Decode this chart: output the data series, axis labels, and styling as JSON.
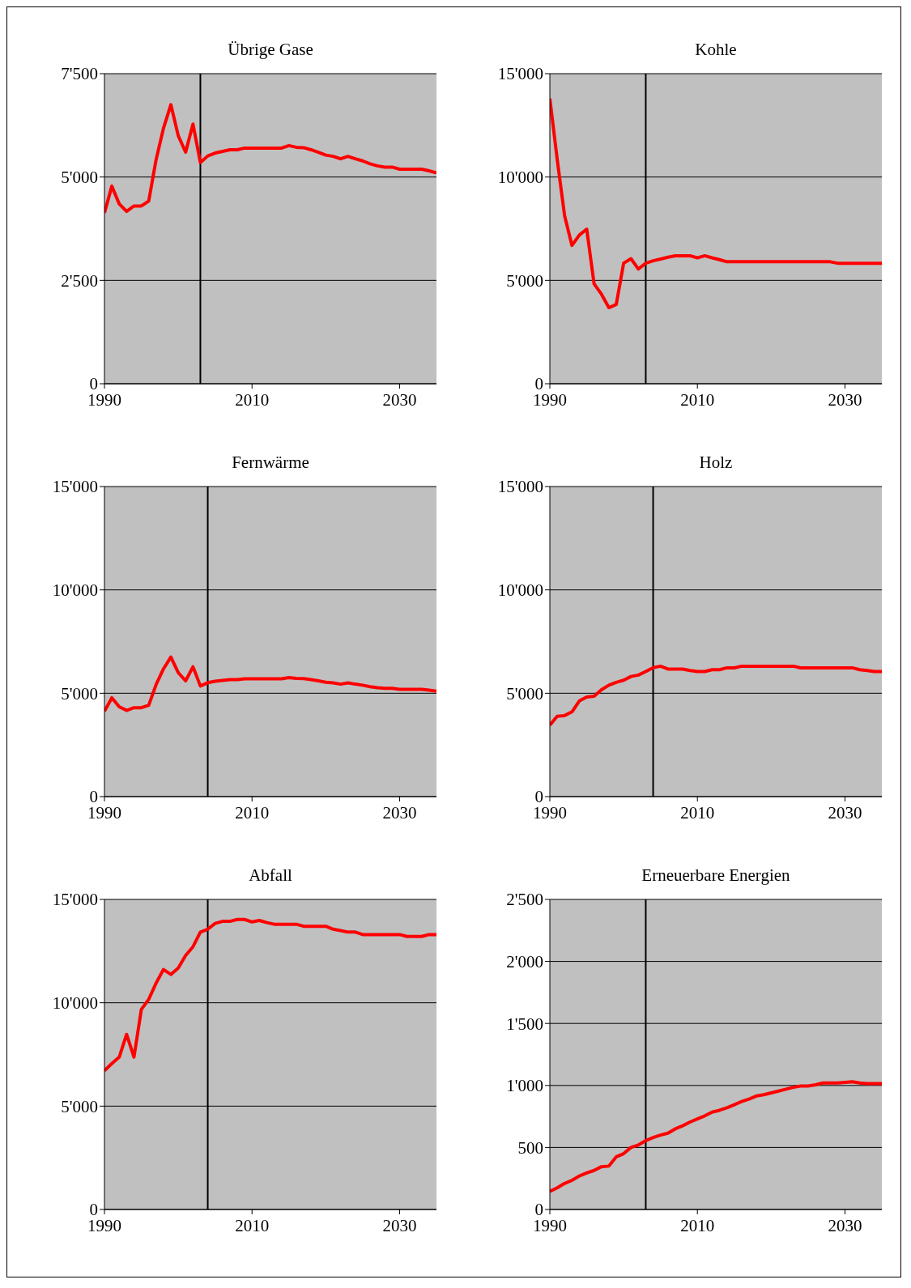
{
  "chart_data": [
    {
      "type": "line",
      "title": "Übrige Gase",
      "x": [
        1990,
        1991,
        1992,
        1993,
        1994,
        1995,
        1996,
        1997,
        1998,
        1999,
        2000,
        2001,
        2002,
        2003,
        2004,
        2005,
        2006,
        2007,
        2008,
        2009,
        2010,
        2011,
        2012,
        2013,
        2014,
        2015,
        2016,
        2017,
        2018,
        2019,
        2020,
        2021,
        2022,
        2023,
        2024,
        2025,
        2026,
        2027,
        2028,
        2029,
        2030,
        2031,
        2032,
        2033,
        2034,
        2035
      ],
      "series": [
        {
          "color": "#ff0000",
          "values": [
            4130,
            4780,
            4350,
            4170,
            4300,
            4300,
            4420,
            5420,
            6180,
            6750,
            6000,
            5600,
            6280,
            5350,
            5510,
            5580,
            5620,
            5660,
            5660,
            5700,
            5700,
            5700,
            5700,
            5700,
            5700,
            5760,
            5720,
            5710,
            5660,
            5600,
            5530,
            5500,
            5440,
            5500,
            5440,
            5390,
            5320,
            5270,
            5240,
            5240,
            5190,
            5190,
            5190,
            5190,
            5150,
            5100
          ]
        }
      ],
      "xlim": [
        1990,
        2035
      ],
      "xticks": [
        1990,
        2010,
        2030
      ],
      "ylim": [
        0,
        7500
      ],
      "yticks": [
        {
          "value": 0,
          "label": "0"
        },
        {
          "value": 2500,
          "label": "2'500"
        },
        {
          "value": 5000,
          "label": "5'000"
        },
        {
          "value": 7500,
          "label": "7'500"
        }
      ],
      "grid": "y",
      "ref_lines": [
        {
          "axis": "x",
          "value": 2003,
          "color": "#000000"
        }
      ]
    },
    {
      "type": "line",
      "title": "Kohle",
      "x": [
        1990,
        1991,
        1992,
        1993,
        1994,
        1995,
        1996,
        1997,
        1998,
        1999,
        2000,
        2001,
        2002,
        2003,
        2004,
        2005,
        2006,
        2007,
        2008,
        2009,
        2010,
        2011,
        2012,
        2013,
        2014,
        2015,
        2016,
        2017,
        2018,
        2019,
        2020,
        2021,
        2022,
        2023,
        2024,
        2025,
        2026,
        2027,
        2028,
        2029,
        2030,
        2031,
        2032,
        2033,
        2034,
        2035
      ],
      "series": [
        {
          "color": "#ff0000",
          "values": [
            13800,
            10850,
            8130,
            6690,
            7190,
            7480,
            4830,
            4330,
            3680,
            3830,
            5830,
            6050,
            5550,
            5830,
            5950,
            6030,
            6120,
            6190,
            6190,
            6190,
            6090,
            6190,
            6090,
            6000,
            5900,
            5900,
            5900,
            5900,
            5900,
            5900,
            5900,
            5900,
            5900,
            5900,
            5900,
            5900,
            5900,
            5900,
            5900,
            5830,
            5830,
            5830,
            5830,
            5830,
            5830,
            5830
          ]
        }
      ],
      "xlim": [
        1990,
        2035
      ],
      "xticks": [
        1990,
        2010,
        2030
      ],
      "ylim": [
        0,
        15000
      ],
      "yticks": [
        {
          "value": 0,
          "label": "0"
        },
        {
          "value": 5000,
          "label": "5'000"
        },
        {
          "value": 10000,
          "label": "10'000"
        },
        {
          "value": 15000,
          "label": "15'000"
        }
      ],
      "grid": "y",
      "ref_lines": [
        {
          "axis": "x",
          "value": 2003,
          "color": "#000000"
        }
      ]
    },
    {
      "type": "line",
      "title": "Fernwärme",
      "x": [
        1990,
        1991,
        1992,
        1993,
        1994,
        1995,
        1996,
        1997,
        1998,
        1999,
        2000,
        2001,
        2002,
        2003,
        2004,
        2005,
        2006,
        2007,
        2008,
        2009,
        2010,
        2011,
        2012,
        2013,
        2014,
        2015,
        2016,
        2017,
        2018,
        2019,
        2020,
        2021,
        2022,
        2023,
        2024,
        2025,
        2026,
        2027,
        2028,
        2029,
        2030,
        2031,
        2032,
        2033,
        2034,
        2035
      ],
      "series": [
        {
          "color": "#ff0000",
          "values": [
            4130,
            4780,
            4350,
            4170,
            4300,
            4300,
            4420,
            5420,
            6180,
            6750,
            6000,
            5600,
            6280,
            5350,
            5510,
            5580,
            5620,
            5660,
            5660,
            5700,
            5700,
            5700,
            5700,
            5700,
            5700,
            5760,
            5720,
            5710,
            5660,
            5600,
            5530,
            5500,
            5440,
            5500,
            5440,
            5390,
            5320,
            5270,
            5240,
            5240,
            5190,
            5190,
            5190,
            5190,
            5150,
            5100
          ]
        }
      ],
      "xlim": [
        1990,
        2035
      ],
      "xticks": [
        1990,
        2010,
        2030
      ],
      "ylim": [
        0,
        15000
      ],
      "yticks": [
        {
          "value": 0,
          "label": "0"
        },
        {
          "value": 5000,
          "label": "5'000"
        },
        {
          "value": 10000,
          "label": "10'000"
        },
        {
          "value": 15000,
          "label": "15'000"
        }
      ],
      "grid": "y",
      "ref_lines": [
        {
          "axis": "x",
          "value": 2004,
          "color": "#000000"
        }
      ]
    },
    {
      "type": "line",
      "title": "Holz",
      "x": [
        1990,
        1991,
        1992,
        1993,
        1994,
        1995,
        1996,
        1997,
        1998,
        1999,
        2000,
        2001,
        2002,
        2003,
        2004,
        2005,
        2006,
        2007,
        2008,
        2009,
        2010,
        2011,
        2012,
        2013,
        2014,
        2015,
        2016,
        2017,
        2018,
        2019,
        2020,
        2021,
        2022,
        2023,
        2024,
        2025,
        2026,
        2027,
        2028,
        2029,
        2030,
        2031,
        2032,
        2033,
        2034,
        2035
      ],
      "series": [
        {
          "color": "#ff0000",
          "values": [
            3460,
            3890,
            3920,
            4100,
            4630,
            4820,
            4860,
            5170,
            5390,
            5530,
            5630,
            5810,
            5880,
            6050,
            6240,
            6310,
            6170,
            6170,
            6170,
            6100,
            6050,
            6050,
            6140,
            6140,
            6230,
            6230,
            6310,
            6310,
            6310,
            6310,
            6310,
            6310,
            6310,
            6310,
            6230,
            6230,
            6230,
            6230,
            6230,
            6230,
            6230,
            6230,
            6140,
            6100,
            6050,
            6050
          ]
        }
      ],
      "xlim": [
        1990,
        2035
      ],
      "xticks": [
        1990,
        2010,
        2030
      ],
      "ylim": [
        0,
        15000
      ],
      "yticks": [
        {
          "value": 0,
          "label": "0"
        },
        {
          "value": 5000,
          "label": "5'000"
        },
        {
          "value": 10000,
          "label": "10'000"
        },
        {
          "value": 15000,
          "label": "15'000"
        }
      ],
      "grid": "y",
      "ref_lines": [
        {
          "axis": "x",
          "value": 2004,
          "color": "#000000"
        }
      ]
    },
    {
      "type": "line",
      "title": "Abfall",
      "x": [
        1990,
        1991,
        1992,
        1993,
        1994,
        1995,
        1996,
        1997,
        1998,
        1999,
        2000,
        2001,
        2002,
        2003,
        2004,
        2005,
        2006,
        2007,
        2008,
        2009,
        2010,
        2011,
        2012,
        2013,
        2014,
        2015,
        2016,
        2017,
        2018,
        2019,
        2020,
        2021,
        2022,
        2023,
        2024,
        2025,
        2026,
        2027,
        2028,
        2029,
        2030,
        2031,
        2032,
        2033,
        2034,
        2035
      ],
      "series": [
        {
          "color": "#ff0000",
          "values": [
            6710,
            7060,
            7370,
            8470,
            7370,
            9680,
            10170,
            10950,
            11610,
            11370,
            11680,
            12290,
            12710,
            13420,
            13560,
            13840,
            13940,
            13940,
            14030,
            14030,
            13910,
            13980,
            13880,
            13800,
            13800,
            13800,
            13800,
            13700,
            13700,
            13700,
            13700,
            13560,
            13490,
            13420,
            13420,
            13300,
            13300,
            13300,
            13300,
            13300,
            13300,
            13210,
            13210,
            13210,
            13300,
            13300
          ]
        }
      ],
      "xlim": [
        1990,
        2035
      ],
      "xticks": [
        1990,
        2010,
        2030
      ],
      "ylim": [
        0,
        15000
      ],
      "yticks": [
        {
          "value": 0,
          "label": "0"
        },
        {
          "value": 5000,
          "label": "5'000"
        },
        {
          "value": 10000,
          "label": "10'000"
        },
        {
          "value": 15000,
          "label": "15'000"
        }
      ],
      "grid": "y",
      "ref_lines": [
        {
          "axis": "x",
          "value": 2004,
          "color": "#000000"
        }
      ]
    },
    {
      "type": "line",
      "title": "Erneuerbare Energien",
      "x": [
        1990,
        1991,
        1992,
        1993,
        1994,
        1995,
        1996,
        1997,
        1998,
        1999,
        2000,
        2001,
        2002,
        2003,
        2004,
        2005,
        2006,
        2007,
        2008,
        2009,
        2010,
        2011,
        2012,
        2013,
        2014,
        2015,
        2016,
        2017,
        2018,
        2019,
        2020,
        2021,
        2022,
        2023,
        2024,
        2025,
        2026,
        2027,
        2028,
        2029,
        2030,
        2031,
        2032,
        2033,
        2034,
        2035
      ],
      "series": [
        {
          "color": "#ff0000",
          "values": [
            145,
            175,
            210,
            235,
            270,
            295,
            315,
            345,
            350,
            425,
            450,
            500,
            520,
            555,
            580,
            600,
            615,
            650,
            675,
            705,
            730,
            755,
            785,
            800,
            820,
            845,
            870,
            890,
            915,
            925,
            940,
            955,
            970,
            985,
            995,
            995,
            1005,
            1020,
            1020,
            1020,
            1025,
            1030,
            1020,
            1015,
            1015,
            1015
          ]
        }
      ],
      "xlim": [
        1990,
        2035
      ],
      "xticks": [
        1990,
        2010,
        2030
      ],
      "ylim": [
        0,
        2500
      ],
      "yticks": [
        {
          "value": 0,
          "label": "0"
        },
        500,
        {
          "value": 1000,
          "label": "1'000"
        },
        {
          "value": 1500,
          "label": "1'500"
        },
        {
          "value": 2000,
          "label": "2'000"
        },
        {
          "value": 2500,
          "label": "2'500"
        }
      ],
      "grid": "y",
      "ref_lines": [
        {
          "axis": "x",
          "value": 2003,
          "color": "#000000"
        }
      ]
    }
  ]
}
